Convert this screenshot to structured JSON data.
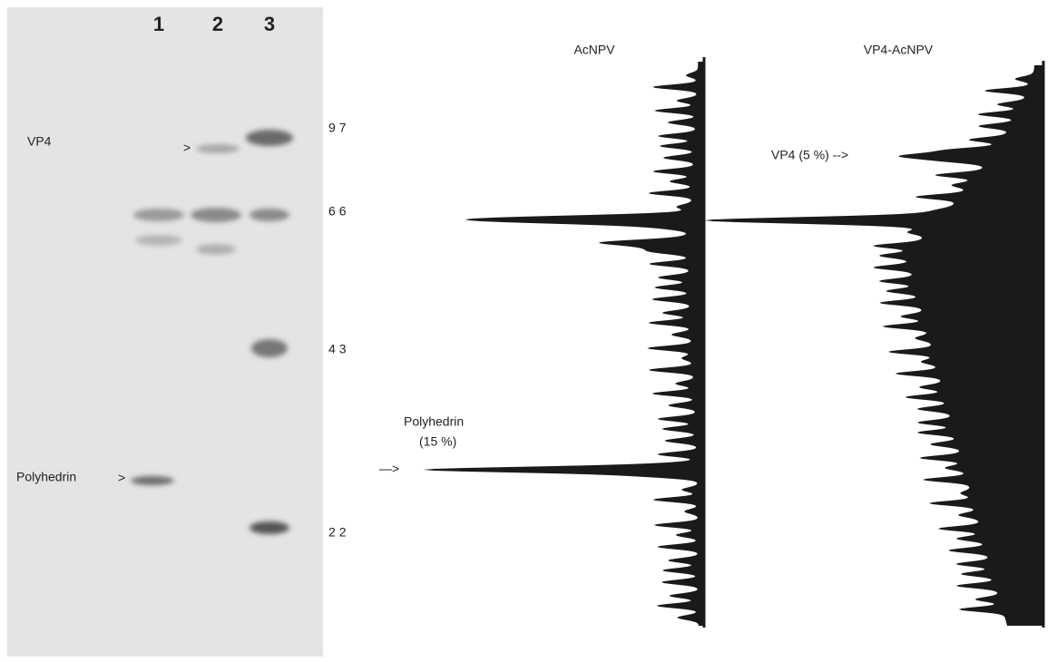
{
  "gel": {
    "lanes": [
      "1",
      "2",
      "3"
    ],
    "bands": [
      {
        "label": "VP4",
        "marker": ">"
      },
      {
        "label": "Polyhedrin",
        "marker": ">"
      }
    ],
    "markers": [
      "97",
      "66",
      "43",
      "22"
    ]
  },
  "traces": [
    {
      "title": "AcNPV",
      "annotation": {
        "label": "Polyhedrin",
        "percent": "(15 %)",
        "arrow": "—>"
      }
    },
    {
      "title": "VP4-AcNPV",
      "annotation": {
        "label": "VP4 (5 %) -->"
      }
    }
  ]
}
